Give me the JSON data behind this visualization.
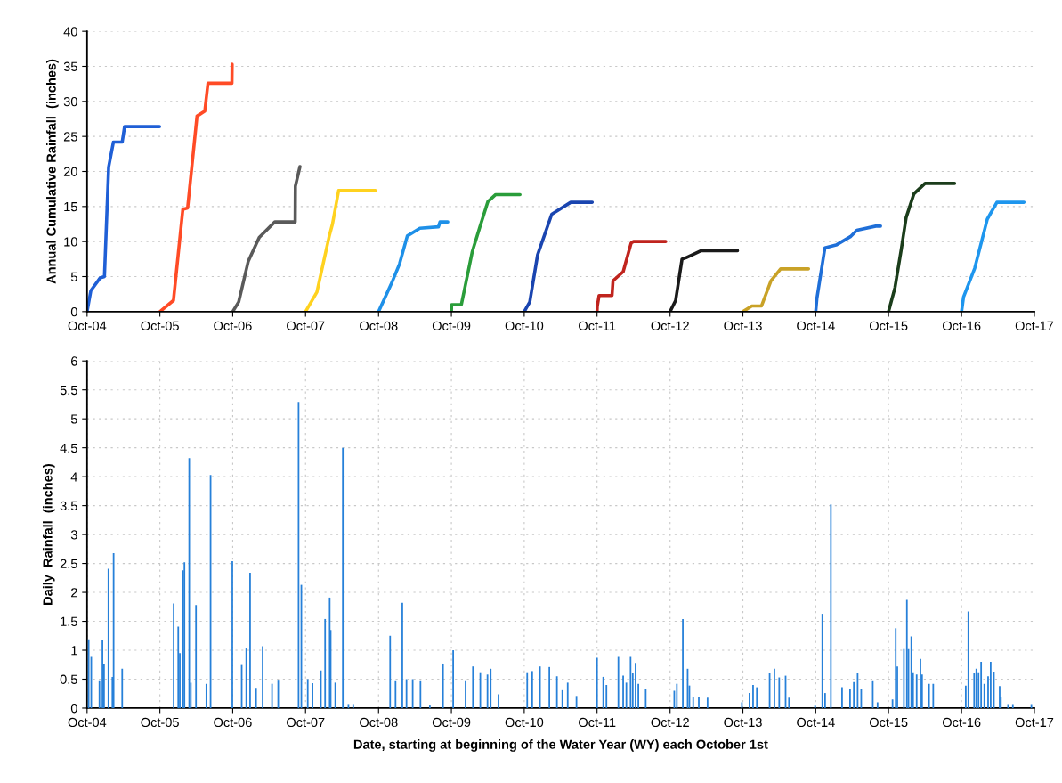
{
  "chart_data": [
    {
      "type": "line",
      "ylabel": "Annual Cumulative Rainfall  (inches)",
      "ylim": [
        0,
        40
      ],
      "yticks": [
        0,
        5,
        10,
        15,
        20,
        25,
        30,
        35,
        40
      ],
      "xlim": [
        "2004-10-01",
        "2017-10-01"
      ],
      "xticks": [
        {
          "value": "2004-10-01",
          "label": "Oct-04"
        },
        {
          "value": "2005-10-01",
          "label": "Oct-05"
        },
        {
          "value": "2006-10-01",
          "label": "Oct-06"
        },
        {
          "value": "2007-10-01",
          "label": "Oct-07"
        },
        {
          "value": "2008-10-01",
          "label": "Oct-08"
        },
        {
          "value": "2009-10-01",
          "label": "Oct-09"
        },
        {
          "value": "2010-10-01",
          "label": "Oct-10"
        },
        {
          "value": "2011-10-01",
          "label": "Oct-11"
        },
        {
          "value": "2012-10-01",
          "label": "Oct-12"
        },
        {
          "value": "2013-10-01",
          "label": "Oct-13"
        },
        {
          "value": "2014-10-01",
          "label": "Oct-14"
        },
        {
          "value": "2015-10-01",
          "label": "Oct-15"
        },
        {
          "value": "2016-10-01",
          "label": "Oct-16"
        },
        {
          "value": "2017-10-01",
          "label": "Oct-17"
        }
      ],
      "grid": "y",
      "marker": "none",
      "line_style": "solid",
      "series": [
        {
          "color": "#1f5fd6",
          "x": [
            "2004-10-01",
            "2004-10-20",
            "2004-12-05",
            "2004-12-27",
            "2005-01-17",
            "2005-02-10",
            "2005-03-26",
            "2005-04-07",
            "2005-09-29"
          ],
          "values": [
            0,
            3.0,
            4.8,
            5.0,
            20.6,
            24.2,
            24.2,
            26.4,
            26.4
          ]
        },
        {
          "color": "#ff4b26",
          "x": [
            "2005-10-01",
            "2005-12-08",
            "2006-01-24",
            "2006-02-17",
            "2006-04-05",
            "2006-05-14",
            "2006-05-30",
            "2006-09-27",
            "2006-09-28"
          ],
          "values": [
            0,
            1.6,
            14.6,
            14.8,
            27.9,
            28.6,
            32.6,
            32.6,
            35.3
          ]
        },
        {
          "color": "#5a5a5a",
          "x": [
            "2006-10-01",
            "2006-10-31",
            "2006-12-18",
            "2007-02-11",
            "2007-04-30",
            "2007-08-10",
            "2007-08-11",
            "2007-09-03"
          ],
          "values": [
            0,
            1.4,
            7.2,
            10.6,
            12.8,
            12.8,
            17.9,
            20.7
          ]
        },
        {
          "color": "#ffd21f",
          "x": [
            "2007-10-01",
            "2007-11-27",
            "2008-01-28",
            "2008-02-13",
            "2008-03-15",
            "2008-09-15"
          ],
          "values": [
            0,
            2.8,
            10.8,
            12.5,
            17.3,
            17.3
          ]
        },
        {
          "color": "#1e90e8",
          "x": [
            "2008-10-01",
            "2008-12-06",
            "2009-01-14",
            "2009-02-22",
            "2009-04-26",
            "2009-07-28",
            "2009-08-05",
            "2009-09-13"
          ],
          "values": [
            0,
            4.1,
            6.8,
            10.8,
            11.9,
            12.1,
            12.8,
            12.8
          ]
        },
        {
          "color": "#2a9d3a",
          "x": [
            "2009-10-01",
            "2009-10-02",
            "2009-11-20",
            "2009-12-06",
            "2010-01-14",
            "2010-02-21",
            "2010-04-02",
            "2010-05-11",
            "2010-09-10"
          ],
          "values": [
            0,
            1.0,
            1.0,
            3.2,
            8.6,
            12.1,
            15.7,
            16.7,
            16.7
          ]
        },
        {
          "color": "#1a45b0",
          "x": [
            "2010-10-01",
            "2010-10-29",
            "2010-12-07",
            "2011-02-16",
            "2011-05-22",
            "2011-09-07"
          ],
          "values": [
            0,
            1.4,
            8.1,
            13.9,
            15.6,
            15.6
          ]
        },
        {
          "color": "#c0241e",
          "x": [
            "2011-10-01",
            "2011-10-02",
            "2011-10-11",
            "2011-12-15",
            "2011-12-20",
            "2012-02-09",
            "2012-03-20",
            "2012-04-01",
            "2012-09-09"
          ],
          "values": [
            0,
            0.7,
            2.3,
            2.3,
            4.4,
            5.7,
            9.8,
            10.0,
            10.0
          ]
        },
        {
          "color": "#1a1a1a",
          "x": [
            "2012-10-01",
            "2012-10-29",
            "2012-11-30",
            "2012-12-20",
            "2013-03-06",
            "2013-09-04"
          ],
          "values": [
            0,
            1.6,
            7.5,
            7.7,
            8.7,
            8.7
          ]
        },
        {
          "color": "#c9a227",
          "x": [
            "2013-10-01",
            "2013-11-15",
            "2014-01-02",
            "2014-02-19",
            "2014-04-08",
            "2014-08-26"
          ],
          "values": [
            0,
            0.8,
            0.8,
            4.4,
            6.1,
            6.1
          ]
        },
        {
          "color": "#1f6fd8",
          "x": [
            "2014-10-01",
            "2014-10-07",
            "2014-11-16",
            "2015-01-11",
            "2015-03-24",
            "2015-04-25",
            "2015-07-29",
            "2015-08-22"
          ],
          "values": [
            0,
            1.9,
            9.1,
            9.5,
            10.7,
            11.6,
            12.2,
            12.2
          ]
        },
        {
          "color": "#1b3d1b",
          "x": [
            "2015-10-01",
            "2015-11-02",
            "2015-12-04",
            "2015-12-28",
            "2016-02-05",
            "2016-04-01",
            "2016-08-27"
          ],
          "values": [
            0,
            3.4,
            8.9,
            13.4,
            16.8,
            18.3,
            18.3
          ]
        },
        {
          "color": "#1e96ee",
          "x": [
            "2016-10-01",
            "2016-10-11",
            "2016-12-06",
            "2017-02-07",
            "2017-03-27",
            "2017-08-10"
          ],
          "values": [
            0,
            2.1,
            6.2,
            13.2,
            15.6,
            15.6
          ]
        }
      ]
    },
    {
      "type": "bar",
      "xlabel": "Date, starting at beginning of the Water Year (WY) each October 1st",
      "ylabel": "Daily  Rainfall  (inches)",
      "ylim": [
        0,
        6
      ],
      "yticks": [
        0,
        0.5,
        1,
        1.5,
        2,
        2.5,
        3,
        3.5,
        4,
        4.5,
        5,
        5.5,
        6
      ],
      "xlim": [
        "2004-10-01",
        "2017-10-01"
      ],
      "xticks": [
        {
          "value": "2004-10-01",
          "label": "Oct-04"
        },
        {
          "value": "2005-10-01",
          "label": "Oct-05"
        },
        {
          "value": "2006-10-01",
          "label": "Oct-06"
        },
        {
          "value": "2007-10-01",
          "label": "Oct-07"
        },
        {
          "value": "2008-10-01",
          "label": "Oct-08"
        },
        {
          "value": "2009-10-01",
          "label": "Oct-09"
        },
        {
          "value": "2010-10-01",
          "label": "Oct-10"
        },
        {
          "value": "2011-10-01",
          "label": "Oct-11"
        },
        {
          "value": "2012-10-01",
          "label": "Oct-12"
        },
        {
          "value": "2013-10-01",
          "label": "Oct-13"
        },
        {
          "value": "2014-10-01",
          "label": "Oct-14"
        },
        {
          "value": "2015-10-01",
          "label": "Oct-15"
        },
        {
          "value": "2016-10-01",
          "label": "Oct-16"
        },
        {
          "value": "2017-10-01",
          "label": "Oct-17"
        }
      ],
      "grid": true,
      "series": [
        {
          "color": "#2680d9",
          "x": [
            "2004-10-09",
            "2004-10-22",
            "2004-12-02",
            "2004-12-17",
            "2004-12-25",
            "2005-01-16",
            "2005-02-05",
            "2005-02-11",
            "2005-03-26",
            "2005-12-09",
            "2006-01-01",
            "2006-01-09",
            "2006-01-25",
            "2006-02-01",
            "2006-02-25",
            "2006-03-05",
            "2006-03-31",
            "2006-05-22",
            "2006-06-12",
            "2006-09-29",
            "2006-11-15",
            "2006-12-08",
            "2006-12-27",
            "2007-01-26",
            "2007-02-28",
            "2007-04-16",
            "2007-05-17",
            "2007-08-27",
            "2007-09-10",
            "2007-10-12",
            "2007-11-05",
            "2007-12-17",
            "2008-01-07",
            "2008-01-30",
            "2008-02-04",
            "2008-02-27",
            "2008-04-05",
            "2008-05-03",
            "2008-05-27",
            "2008-11-28",
            "2008-12-25",
            "2009-01-28",
            "2009-02-18",
            "2009-03-21",
            "2009-04-29",
            "2009-06-15",
            "2009-08-20",
            "2009-10-10",
            "2009-12-11",
            "2010-01-17",
            "2010-02-23",
            "2010-03-31",
            "2010-04-16",
            "2010-05-25",
            "2010-10-16",
            "2010-11-10",
            "2010-12-19",
            "2011-02-04",
            "2011-03-14",
            "2011-04-10",
            "2011-05-07",
            "2011-06-20",
            "2011-10-01",
            "2011-11-01",
            "2011-11-17",
            "2012-01-16",
            "2012-02-09",
            "2012-02-25",
            "2012-03-17",
            "2012-03-28",
            "2012-04-11",
            "2012-04-25",
            "2012-06-01",
            "2012-10-22",
            "2012-11-04",
            "2012-12-04",
            "2012-12-28",
            "2013-01-06",
            "2013-01-25",
            "2013-02-22",
            "2013-04-07",
            "2013-09-26",
            "2013-11-03",
            "2013-11-21",
            "2013-12-10",
            "2014-02-12",
            "2014-03-08",
            "2014-04-01",
            "2014-05-03",
            "2014-05-20",
            "2014-09-28",
            "2014-11-03",
            "2014-11-17",
            "2014-12-16",
            "2015-02-10",
            "2015-03-22",
            "2015-04-10",
            "2015-04-29",
            "2015-05-17",
            "2015-07-14",
            "2015-08-07",
            "2015-10-21",
            "2015-11-06",
            "2015-11-14",
            "2015-12-17",
            "2016-01-01",
            "2016-01-09",
            "2016-01-23",
            "2016-02-01",
            "2016-02-19",
            "2016-03-09",
            "2016-03-17",
            "2016-04-21",
            "2016-05-12",
            "2016-10-22",
            "2016-11-04",
            "2016-12-03",
            "2016-12-14",
            "2016-12-25",
            "2017-01-07",
            "2017-01-23",
            "2017-02-11",
            "2017-02-24",
            "2017-03-12",
            "2017-04-10",
            "2017-04-16",
            "2017-05-22",
            "2017-06-15",
            "2017-09-16"
          ],
          "values": [
            1.19,
            0.9,
            0.48,
            1.17,
            0.77,
            2.41,
            0.54,
            2.68,
            0.68,
            1.81,
            1.41,
            0.95,
            2.38,
            2.52,
            4.32,
            0.44,
            1.78,
            0.42,
            4.03,
            2.54,
            0.76,
            1.03,
            2.34,
            0.35,
            1.07,
            0.42,
            0.49,
            5.29,
            2.13,
            0.5,
            0.43,
            0.65,
            1.54,
            1.91,
            1.35,
            0.44,
            4.5,
            0.07,
            0.07,
            1.25,
            0.48,
            1.82,
            0.5,
            0.5,
            0.48,
            0.06,
            0.77,
            1.0,
            0.48,
            0.72,
            0.62,
            0.58,
            0.68,
            0.24,
            0.62,
            0.64,
            0.72,
            0.71,
            0.55,
            0.31,
            0.44,
            0.21,
            0.87,
            0.54,
            0.4,
            0.9,
            0.56,
            0.44,
            0.9,
            0.6,
            0.78,
            0.42,
            0.33,
            0.3,
            0.42,
            1.54,
            0.68,
            0.39,
            0.2,
            0.2,
            0.18,
            0.1,
            0.26,
            0.4,
            0.36,
            0.6,
            0.68,
            0.53,
            0.56,
            0.18,
            0.06,
            1.63,
            0.26,
            3.52,
            0.36,
            0.33,
            0.45,
            0.61,
            0.33,
            0.48,
            0.1,
            0.15,
            1.38,
            0.72,
            1.02,
            1.87,
            1.02,
            1.24,
            0.62,
            0.58,
            0.85,
            0.58,
            0.42,
            0.42,
            0.39,
            1.67,
            0.6,
            0.68,
            0.62,
            0.8,
            0.42,
            0.55,
            0.8,
            0.63,
            0.38,
            0.2,
            0.07,
            0.07,
            0.07
          ]
        }
      ]
    }
  ]
}
